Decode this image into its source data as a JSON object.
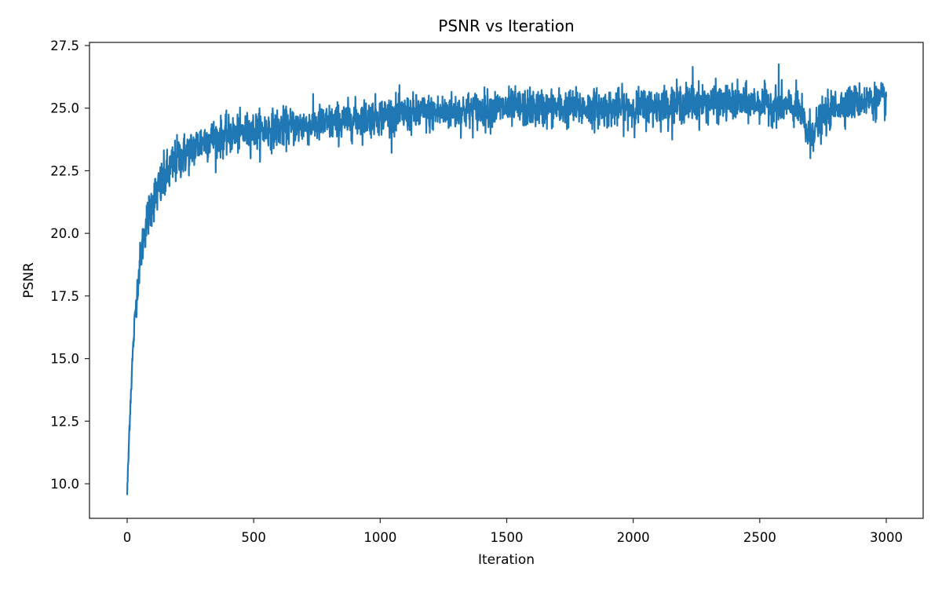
{
  "chart_data": {
    "type": "line",
    "title": "PSNR vs Iteration",
    "xlabel": "Iteration",
    "ylabel": "PSNR",
    "xlim": [
      -150,
      3150
    ],
    "ylim": [
      8.75,
      27.6
    ],
    "xticks": [
      0,
      500,
      1000,
      1500,
      2000,
      2500,
      3000
    ],
    "xtick_labels": [
      "0",
      "500",
      "1000",
      "1500",
      "2000",
      "2500",
      "3000"
    ],
    "yticks": [
      10.0,
      12.5,
      15.0,
      17.5,
      20.0,
      22.5,
      25.0,
      27.5
    ],
    "ytick_labels": [
      "10.0",
      "12.5",
      "15.0",
      "17.5",
      "20.0",
      "22.5",
      "25.0",
      "27.5"
    ],
    "grid": false,
    "legend": null,
    "series": [
      {
        "name": "PSNR",
        "color": "#1f77b4",
        "x_range": [
          0,
          3000
        ],
        "envelope": {
          "x": [
            0,
            5,
            10,
            20,
            30,
            40,
            50,
            70,
            100,
            150,
            200,
            250,
            300,
            400,
            500,
            600,
            800,
            1000,
            1200,
            1500,
            1800,
            2000,
            2200,
            2500,
            2650,
            2690,
            2720,
            2760,
            2800,
            2900,
            3000
          ],
          "mean": [
            9.6,
            11.0,
            12.6,
            14.8,
            16.5,
            17.8,
            18.8,
            20.2,
            21.3,
            22.2,
            23.0,
            23.3,
            23.7,
            23.9,
            24.1,
            24.2,
            24.4,
            24.7,
            24.8,
            25.0,
            25.0,
            25.0,
            25.2,
            25.2,
            25.0,
            24.0,
            24.2,
            24.7,
            25.1,
            25.3,
            25.3
          ],
          "noise": [
            0.2,
            0.3,
            0.3,
            0.3,
            0.35,
            0.4,
            0.5,
            0.55,
            0.6,
            0.65,
            0.6,
            0.55,
            0.55,
            0.5,
            0.5,
            0.5,
            0.5,
            0.5,
            0.5,
            0.5,
            0.5,
            0.5,
            0.5,
            0.45,
            0.5,
            0.55,
            0.5,
            0.5,
            0.45,
            0.45,
            0.45
          ]
        },
        "notable_points": [
          {
            "x": 0,
            "y": 9.55,
            "note": "minimum / start"
          },
          {
            "x": 2575,
            "y": 26.75,
            "note": "maximum spike"
          },
          {
            "x": 2235,
            "y": 26.65,
            "note": "spike"
          },
          {
            "x": 2700,
            "y": 23.0,
            "note": "dip"
          }
        ]
      }
    ]
  }
}
